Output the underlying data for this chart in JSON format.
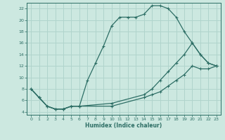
{
  "xlabel": "Humidex (Indice chaleur)",
  "bg_color": "#cce8e0",
  "grid_color": "#b0d4cc",
  "line_color": "#2d6e65",
  "xlim": [
    -0.5,
    23.5
  ],
  "ylim": [
    3.5,
    23
  ],
  "xticks": [
    0,
    1,
    2,
    3,
    4,
    5,
    6,
    7,
    8,
    9,
    10,
    11,
    12,
    13,
    14,
    15,
    16,
    17,
    18,
    19,
    20,
    21,
    22,
    23
  ],
  "yticks": [
    4,
    6,
    8,
    10,
    12,
    14,
    16,
    18,
    20,
    22
  ],
  "line1_x": [
    0,
    1,
    2,
    3,
    4,
    5,
    6,
    7,
    8,
    9,
    10,
    11,
    12,
    13,
    14,
    15,
    16,
    17,
    18,
    19,
    20,
    21,
    22,
    23
  ],
  "line1_y": [
    8,
    6.5,
    5,
    4.5,
    4.5,
    5,
    5,
    9.5,
    12.5,
    15.5,
    19,
    20.5,
    20.5,
    20.5,
    21,
    22.5,
    22.5,
    22,
    20.5,
    18,
    16,
    14,
    12.5,
    12
  ],
  "line2_x": [
    0,
    1,
    2,
    3,
    4,
    5,
    6,
    10,
    14,
    15,
    16,
    17,
    18,
    19,
    20,
    21,
    22,
    23
  ],
  "line2_y": [
    8,
    6.5,
    5,
    4.5,
    4.5,
    5,
    5,
    5.5,
    7,
    8,
    9.5,
    11,
    12.5,
    14,
    16,
    14,
    12.5,
    12
  ],
  "line3_x": [
    0,
    1,
    2,
    3,
    4,
    5,
    6,
    10,
    14,
    15,
    16,
    17,
    18,
    19,
    20,
    21,
    22,
    23
  ],
  "line3_y": [
    8,
    6.5,
    5,
    4.5,
    4.5,
    5,
    5,
    5,
    6.5,
    7,
    7.5,
    8.5,
    9.5,
    10.5,
    12,
    11.5,
    11.5,
    12
  ]
}
